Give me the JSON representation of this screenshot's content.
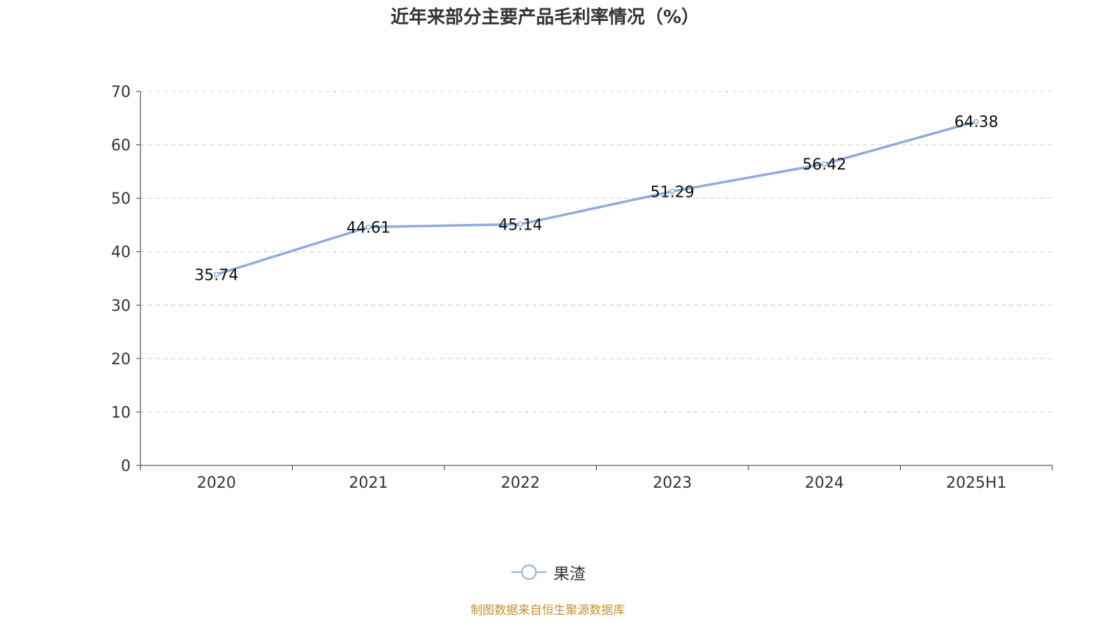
{
  "chart_data": {
    "type": "line",
    "title": "近年来部分主要产品毛利率情况（%）",
    "categories": [
      "2020",
      "2021",
      "2022",
      "2023",
      "2024",
      "2025H1"
    ],
    "series": [
      {
        "name": "果渣",
        "values": [
          35.74,
          44.61,
          45.14,
          51.29,
          56.42,
          64.38
        ],
        "color": "#8eacdb"
      }
    ],
    "ylim": [
      0,
      70
    ],
    "yticks": [
      0,
      10,
      20,
      30,
      40,
      50,
      60,
      70
    ],
    "grid": true,
    "legend": "bottom-center"
  },
  "source": "制图数据来自恒生聚源数据库"
}
